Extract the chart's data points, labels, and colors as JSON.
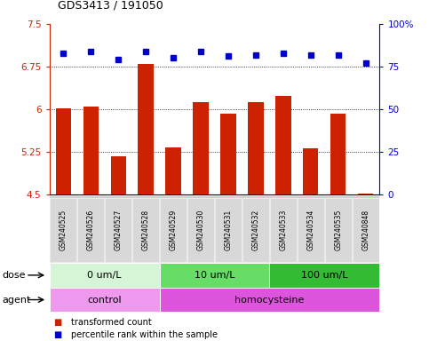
{
  "title": "GDS3413 / 191050",
  "samples": [
    "GSM240525",
    "GSM240526",
    "GSM240527",
    "GSM240528",
    "GSM240529",
    "GSM240530",
    "GSM240531",
    "GSM240532",
    "GSM240533",
    "GSM240534",
    "GSM240535",
    "GSM240848"
  ],
  "bar_values": [
    6.01,
    6.05,
    5.18,
    6.79,
    5.33,
    6.13,
    5.93,
    6.13,
    6.23,
    5.32,
    5.93,
    4.52
  ],
  "dot_values": [
    83,
    84,
    79,
    84,
    80,
    84,
    81,
    82,
    83,
    82,
    82,
    77
  ],
  "bar_color": "#cc2200",
  "dot_color": "#0000cc",
  "ylim_left": [
    4.5,
    7.5
  ],
  "ylim_right": [
    0,
    100
  ],
  "yticks_left": [
    4.5,
    5.25,
    6.0,
    6.75,
    7.5
  ],
  "yticks_left_labels": [
    "4.5",
    "5.25",
    "6",
    "6.75",
    "7.5"
  ],
  "ytick_right_labels": [
    "0",
    "25",
    "50",
    "75",
    "100%"
  ],
  "yticks_right": [
    0,
    25,
    50,
    75,
    100
  ],
  "hlines": [
    5.25,
    6.0,
    6.75
  ],
  "dose_groups": [
    {
      "label": "0 um/L",
      "start": 0,
      "end": 4,
      "color": "#d6f5d6"
    },
    {
      "label": "10 um/L",
      "start": 4,
      "end": 8,
      "color": "#66dd66"
    },
    {
      "label": "100 um/L",
      "start": 8,
      "end": 12,
      "color": "#33bb33"
    }
  ],
  "agent_groups": [
    {
      "label": "control",
      "start": 0,
      "end": 4,
      "color": "#ee99ee"
    },
    {
      "label": "homocysteine",
      "start": 4,
      "end": 12,
      "color": "#dd55dd"
    }
  ],
  "dose_label": "dose",
  "agent_label": "agent",
  "legend_bar": "transformed count",
  "legend_dot": "percentile rank within the sample",
  "background_color": "#ffffff",
  "left_tick_color": "#cc2200",
  "right_tick_color": "#0000cc",
  "label_bg": "#d0d0d0"
}
